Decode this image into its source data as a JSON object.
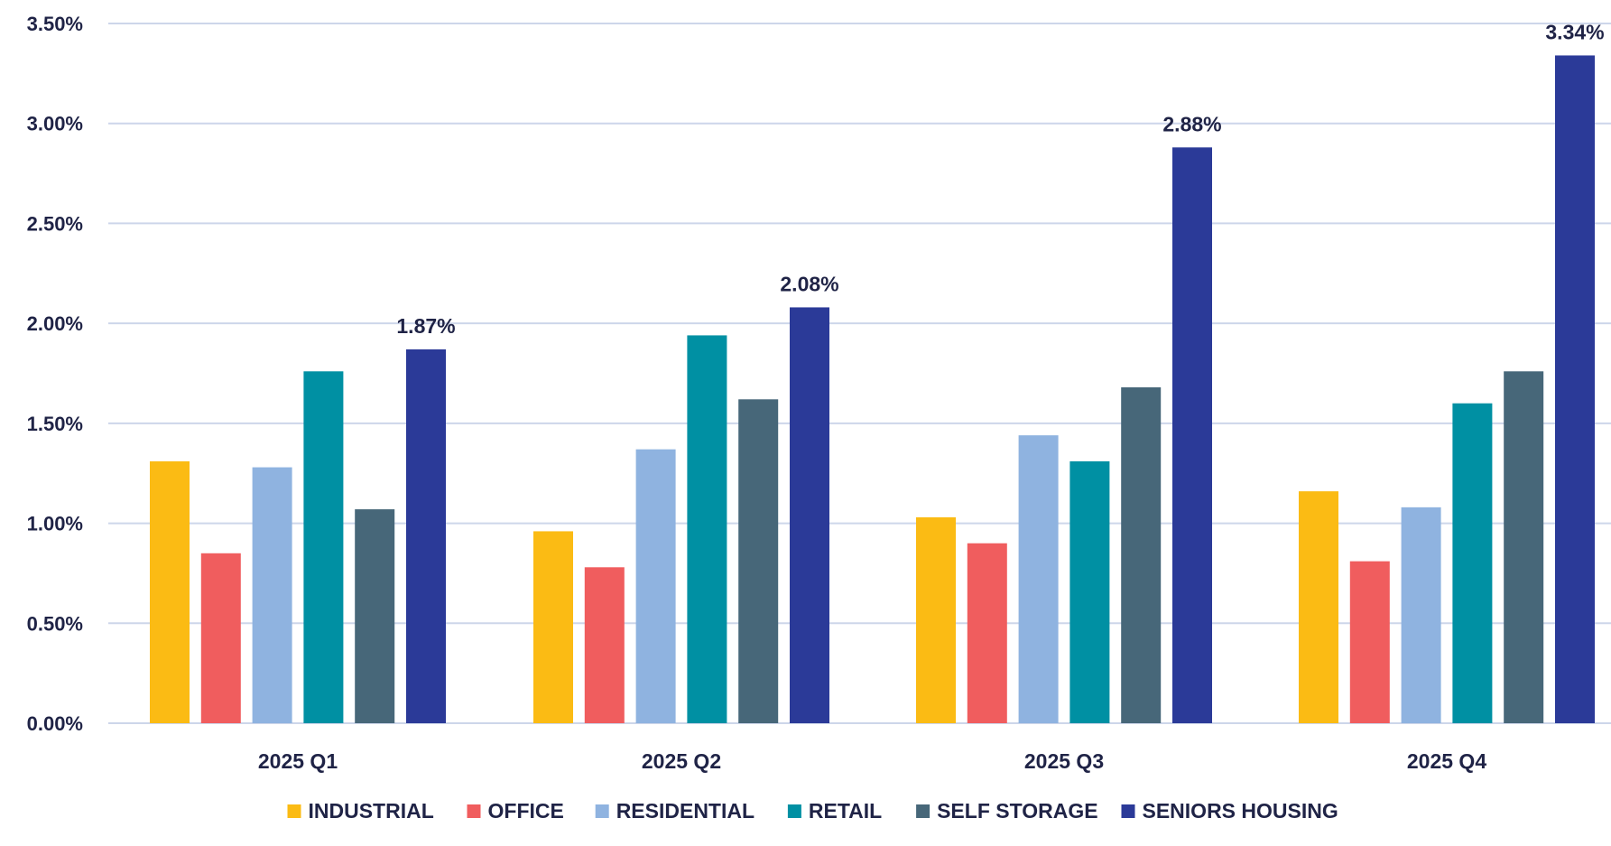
{
  "chart_data": {
    "type": "bar",
    "title": "",
    "xlabel": "",
    "ylabel": "",
    "ylim": [
      0,
      3.5
    ],
    "y_ticks": [
      "0.00%",
      "0.50%",
      "1.00%",
      "1.50%",
      "2.00%",
      "2.50%",
      "3.00%",
      "3.50%"
    ],
    "y_tick_values": [
      0,
      0.5,
      1.0,
      1.5,
      2.0,
      2.5,
      3.0,
      3.5
    ],
    "grid": true,
    "legend_position": "bottom",
    "categories": [
      "2025 Q1",
      "2025 Q2",
      "2025 Q3",
      "2025 Q4"
    ],
    "series": [
      {
        "name": "INDUSTRIAL",
        "color": "#fbbb14",
        "values": [
          1.31,
          0.96,
          1.03,
          1.16
        ]
      },
      {
        "name": "OFFICE",
        "color": "#f05d5e",
        "values": [
          0.85,
          0.78,
          0.9,
          0.81
        ]
      },
      {
        "name": "RESIDENTIAL",
        "color": "#8fb3e0",
        "values": [
          1.28,
          1.37,
          1.44,
          1.08
        ]
      },
      {
        "name": "RETAIL",
        "color": "#0090a3",
        "values": [
          1.76,
          1.94,
          1.31,
          1.6
        ]
      },
      {
        "name": "SELF STORAGE",
        "color": "#476779",
        "values": [
          1.07,
          1.62,
          1.68,
          1.76
        ]
      },
      {
        "name": "SENIORS HOUSING",
        "color": "#2b3a98",
        "values": [
          1.87,
          2.08,
          2.88,
          3.34
        ]
      }
    ],
    "data_labels": [
      {
        "series": "SENIORS HOUSING",
        "category": "2025 Q1",
        "text": "1.87%"
      },
      {
        "series": "SENIORS HOUSING",
        "category": "2025 Q2",
        "text": "2.08%"
      },
      {
        "series": "SENIORS HOUSING",
        "category": "2025 Q3",
        "text": "2.88%"
      },
      {
        "series": "SENIORS HOUSING",
        "category": "2025 Q4",
        "text": "3.34%"
      }
    ]
  },
  "colors": {
    "gridline": "#cdd6ea",
    "text": "#1f2346"
  }
}
